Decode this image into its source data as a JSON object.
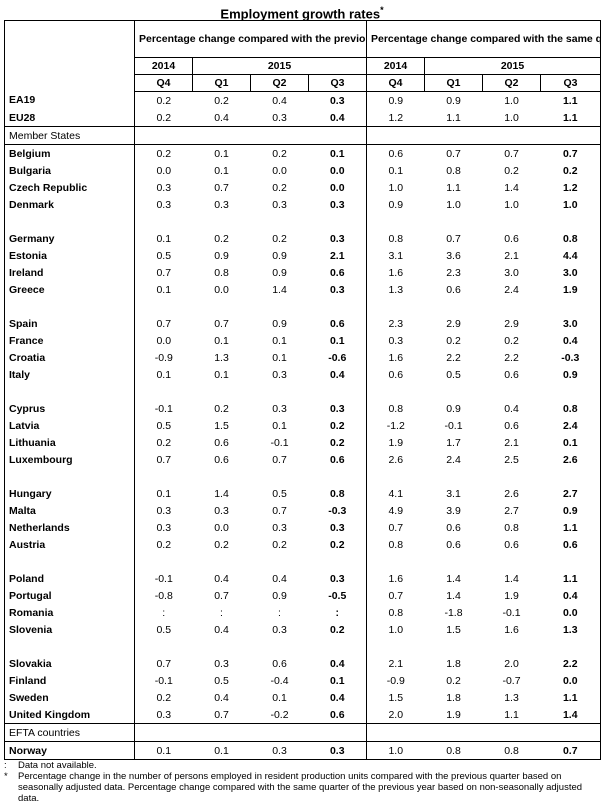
{
  "title": "Employment growth rates",
  "title_mark": "*",
  "header": {
    "group_qoq": "Percentage change compared with the previous quarter",
    "group_yoy": "Percentage change compared with the same quarter of the previous year",
    "year_2014": "2014",
    "year_2015": "2015",
    "q4": "Q4",
    "q1": "Q1",
    "q2": "Q2",
    "q3": "Q3"
  },
  "aggregates": [
    {
      "name": "EA19",
      "qoq": [
        "0.2",
        "0.2",
        "0.4",
        "0.3"
      ],
      "yoy": [
        "0.9",
        "0.9",
        "1.0",
        "1.1"
      ]
    },
    {
      "name": "EU28",
      "qoq": [
        "0.2",
        "0.4",
        "0.3",
        "0.4"
      ],
      "yoy": [
        "1.2",
        "1.1",
        "1.0",
        "1.1"
      ]
    }
  ],
  "member_states_label": "Member States",
  "member_groups": [
    [
      {
        "name": "Belgium",
        "qoq": [
          "0.2",
          "0.1",
          "0.2",
          "0.1"
        ],
        "yoy": [
          "0.6",
          "0.7",
          "0.7",
          "0.7"
        ]
      },
      {
        "name": "Bulgaria",
        "qoq": [
          "0.0",
          "0.1",
          "0.0",
          "0.0"
        ],
        "yoy": [
          "0.1",
          "0.8",
          "0.2",
          "0.2"
        ]
      },
      {
        "name": "Czech Republic",
        "qoq": [
          "0.3",
          "0.7",
          "0.2",
          "0.0"
        ],
        "yoy": [
          "1.0",
          "1.1",
          "1.4",
          "1.2"
        ]
      },
      {
        "name": "Denmark",
        "qoq": [
          "0.3",
          "0.3",
          "0.3",
          "0.3"
        ],
        "yoy": [
          "0.9",
          "1.0",
          "1.0",
          "1.0"
        ]
      }
    ],
    [
      {
        "name": "Germany",
        "qoq": [
          "0.1",
          "0.2",
          "0.2",
          "0.3"
        ],
        "yoy": [
          "0.8",
          "0.7",
          "0.6",
          "0.8"
        ]
      },
      {
        "name": "Estonia",
        "qoq": [
          "0.5",
          "0.9",
          "0.9",
          "2.1"
        ],
        "yoy": [
          "3.1",
          "3.6",
          "2.1",
          "4.4"
        ]
      },
      {
        "name": "Ireland",
        "qoq": [
          "0.7",
          "0.8",
          "0.9",
          "0.6"
        ],
        "yoy": [
          "1.6",
          "2.3",
          "3.0",
          "3.0"
        ]
      },
      {
        "name": "Greece",
        "qoq": [
          "0.1",
          "0.0",
          "1.4",
          "0.3"
        ],
        "yoy": [
          "1.3",
          "0.6",
          "2.4",
          "1.9"
        ]
      }
    ],
    [
      {
        "name": "Spain",
        "qoq": [
          "0.7",
          "0.7",
          "0.9",
          "0.6"
        ],
        "yoy": [
          "2.3",
          "2.9",
          "2.9",
          "3.0"
        ]
      },
      {
        "name": "France",
        "qoq": [
          "0.0",
          "0.1",
          "0.1",
          "0.1"
        ],
        "yoy": [
          "0.3",
          "0.2",
          "0.2",
          "0.4"
        ]
      },
      {
        "name": "Croatia",
        "qoq": [
          "-0.9",
          "1.3",
          "0.1",
          "-0.6"
        ],
        "yoy": [
          "1.6",
          "2.2",
          "2.2",
          "-0.3"
        ]
      },
      {
        "name": "Italy",
        "qoq": [
          "0.1",
          "0.1",
          "0.3",
          "0.4"
        ],
        "yoy": [
          "0.6",
          "0.5",
          "0.6",
          "0.9"
        ]
      }
    ],
    [
      {
        "name": "Cyprus",
        "qoq": [
          "-0.1",
          "0.2",
          "0.3",
          "0.3"
        ],
        "yoy": [
          "0.8",
          "0.9",
          "0.4",
          "0.8"
        ]
      },
      {
        "name": "Latvia",
        "qoq": [
          "0.5",
          "1.5",
          "0.1",
          "0.2"
        ],
        "yoy": [
          "-1.2",
          "-0.1",
          "0.6",
          "2.4"
        ]
      },
      {
        "name": "Lithuania",
        "qoq": [
          "0.2",
          "0.6",
          "-0.1",
          "0.2"
        ],
        "yoy": [
          "1.9",
          "1.7",
          "2.1",
          "0.1"
        ]
      },
      {
        "name": "Luxembourg",
        "qoq": [
          "0.7",
          "0.6",
          "0.7",
          "0.6"
        ],
        "yoy": [
          "2.6",
          "2.4",
          "2.5",
          "2.6"
        ]
      }
    ],
    [
      {
        "name": "Hungary",
        "qoq": [
          "0.1",
          "1.4",
          "0.5",
          "0.8"
        ],
        "yoy": [
          "4.1",
          "3.1",
          "2.6",
          "2.7"
        ]
      },
      {
        "name": "Malta",
        "qoq": [
          "0.3",
          "0.3",
          "0.7",
          "-0.3"
        ],
        "yoy": [
          "4.9",
          "3.9",
          "2.7",
          "0.9"
        ]
      },
      {
        "name": "Netherlands",
        "qoq": [
          "0.3",
          "0.0",
          "0.3",
          "0.3"
        ],
        "yoy": [
          "0.7",
          "0.6",
          "0.8",
          "1.1"
        ]
      },
      {
        "name": "Austria",
        "qoq": [
          "0.2",
          "0.2",
          "0.2",
          "0.2"
        ],
        "yoy": [
          "0.8",
          "0.6",
          "0.6",
          "0.6"
        ]
      }
    ],
    [
      {
        "name": "Poland",
        "qoq": [
          "-0.1",
          "0.4",
          "0.4",
          "0.3"
        ],
        "yoy": [
          "1.6",
          "1.4",
          "1.4",
          "1.1"
        ]
      },
      {
        "name": "Portugal",
        "qoq": [
          "-0.8",
          "0.7",
          "0.9",
          "-0.5"
        ],
        "yoy": [
          "0.7",
          "1.4",
          "1.9",
          "0.4"
        ]
      },
      {
        "name": "Romania",
        "qoq": [
          ":",
          ":",
          ":",
          ":"
        ],
        "yoy": [
          "0.8",
          "-1.8",
          "-0.1",
          "0.0"
        ]
      },
      {
        "name": "Slovenia",
        "qoq": [
          "0.5",
          "0.4",
          "0.3",
          "0.2"
        ],
        "yoy": [
          "1.0",
          "1.5",
          "1.6",
          "1.3"
        ]
      }
    ],
    [
      {
        "name": "Slovakia",
        "qoq": [
          "0.7",
          "0.3",
          "0.6",
          "0.4"
        ],
        "yoy": [
          "2.1",
          "1.8",
          "2.0",
          "2.2"
        ]
      },
      {
        "name": "Finland",
        "qoq": [
          "-0.1",
          "0.5",
          "-0.4",
          "0.1"
        ],
        "yoy": [
          "-0.9",
          "0.2",
          "-0.7",
          "0.0"
        ]
      },
      {
        "name": "Sweden",
        "qoq": [
          "0.2",
          "0.4",
          "0.1",
          "0.4"
        ],
        "yoy": [
          "1.5",
          "1.8",
          "1.3",
          "1.1"
        ]
      },
      {
        "name": "United Kingdom",
        "qoq": [
          "0.3",
          "0.7",
          "-0.2",
          "0.6"
        ],
        "yoy": [
          "2.0",
          "1.9",
          "1.1",
          "1.4"
        ]
      }
    ]
  ],
  "efta_label": "EFTA countries",
  "efta": [
    {
      "name": "Norway",
      "qoq": [
        "0.1",
        "0.1",
        "0.3",
        "0.3"
      ],
      "yoy": [
        "1.0",
        "0.8",
        "0.8",
        "0.7"
      ]
    }
  ],
  "notes": [
    {
      "mark": ":",
      "text": "Data not available."
    },
    {
      "mark": "*",
      "text": "Percentage change in the number of persons employed in resident production units compared with the previous quarter based on seasonally adjusted data. Percentage change compared with the same quarter of the previous year based on non-seasonally adjusted data."
    }
  ]
}
